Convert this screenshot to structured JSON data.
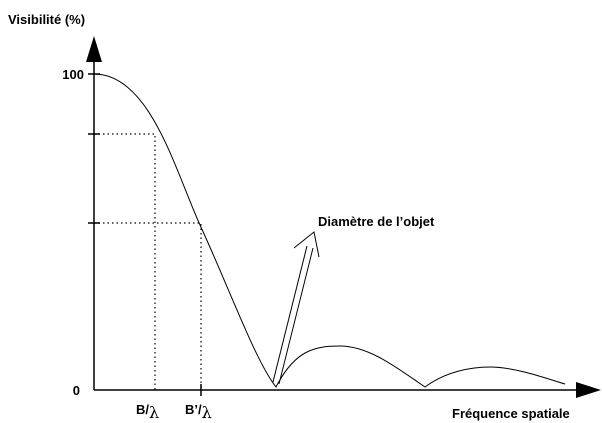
{
  "y_axis": {
    "title": "Visibilité (%)",
    "ticks": [
      "100",
      "0"
    ]
  },
  "x_axis": {
    "title": "Fréquence spatiale",
    "ticks": [
      {
        "main": "B/",
        "sym": "λ"
      },
      {
        "main": "B’/",
        "sym": "λ"
      }
    ]
  },
  "annotation": "Diamètre de l’objet"
}
